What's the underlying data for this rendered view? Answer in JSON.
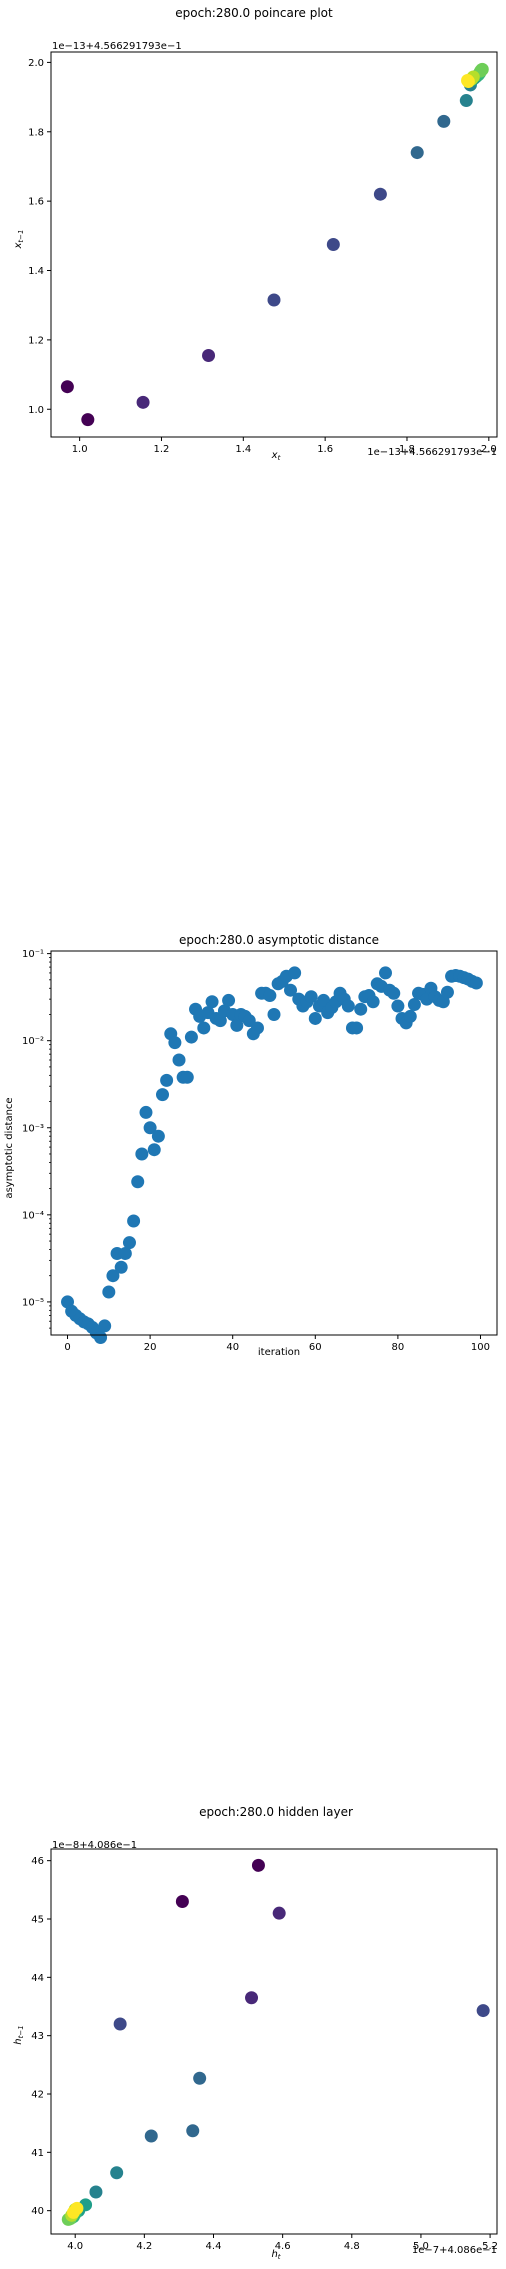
{
  "chart_data": [
    {
      "type": "scatter",
      "title": "epoch:280.0 poincare plot",
      "xlabel": "x_t",
      "ylabel": "x_{t-1}",
      "x_offset_label": "1e−13+4.566291793e−1",
      "y_offset_label": "1e−13+4.566291793e−1",
      "xlim": [
        0.93,
        2.02
      ],
      "ylim": [
        0.92,
        2.03
      ],
      "xticks": [
        1.0,
        1.2,
        1.4,
        1.6,
        1.8,
        2.0
      ],
      "xtick_labels": [
        "1.0",
        "1.2",
        "1.4",
        "1.6",
        "1.8",
        "2.0"
      ],
      "yticks": [
        1.0,
        1.2,
        1.4,
        1.6,
        1.8,
        2.0
      ],
      "ytick_labels": [
        "1.0",
        "1.2",
        "1.4",
        "1.6",
        "1.8",
        "2.0"
      ],
      "grid": false,
      "colormap": [
        "#440154",
        "#482878",
        "#3e4989",
        "#31688e",
        "#26828e",
        "#1f9e89",
        "#35b779",
        "#6ece58",
        "#b5de2b",
        "#fde725"
      ],
      "points": [
        {
          "x": 0.97,
          "y": 1.065
        },
        {
          "x": 1.02,
          "y": 0.97
        },
        {
          "x": 1.155,
          "y": 1.02
        },
        {
          "x": 1.315,
          "y": 1.155
        },
        {
          "x": 1.475,
          "y": 1.315
        },
        {
          "x": 1.62,
          "y": 1.475
        },
        {
          "x": 1.735,
          "y": 1.62
        },
        {
          "x": 1.825,
          "y": 1.74
        },
        {
          "x": 1.89,
          "y": 1.83
        },
        {
          "x": 1.945,
          "y": 1.89
        },
        {
          "x": 1.955,
          "y": 1.935
        },
        {
          "x": 1.96,
          "y": 1.95
        },
        {
          "x": 1.965,
          "y": 1.955
        },
        {
          "x": 1.97,
          "y": 1.96
        },
        {
          "x": 1.975,
          "y": 1.965
        },
        {
          "x": 1.978,
          "y": 1.97
        },
        {
          "x": 1.98,
          "y": 1.975
        },
        {
          "x": 1.982,
          "y": 1.978
        },
        {
          "x": 1.984,
          "y": 1.98
        },
        {
          "x": 1.962,
          "y": 1.958
        },
        {
          "x": 1.958,
          "y": 1.952
        },
        {
          "x": 1.95,
          "y": 1.945
        },
        {
          "x": 1.948,
          "y": 1.948
        }
      ]
    },
    {
      "type": "scatter",
      "title": "epoch:280.0 asymptotic distance",
      "xlabel": "iteration",
      "ylabel": "asymptotic distance",
      "yscale": "log",
      "xlim": [
        -4,
        104
      ],
      "ylim_log10": [
        -5.38,
        -0.97
      ],
      "xticks": [
        0,
        20,
        40,
        60,
        80,
        100
      ],
      "xtick_labels": [
        "0",
        "20",
        "40",
        "60",
        "80",
        "100"
      ],
      "ytick_exponents": [
        -5,
        -4,
        -3,
        -2,
        -1
      ],
      "ytick_labels": [
        "10⁻⁵",
        "10⁻⁴",
        "10⁻³",
        "10⁻²",
        "10⁻¹"
      ],
      "grid": false,
      "color": "#1f77b4",
      "x": [
        0,
        1,
        2,
        3,
        4,
        5,
        6,
        7,
        8,
        9,
        10,
        11,
        12,
        13,
        14,
        15,
        16,
        17,
        18,
        19,
        20,
        21,
        22,
        23,
        24,
        25,
        26,
        27,
        28,
        29,
        30,
        31,
        32,
        33,
        34,
        35,
        36,
        37,
        38,
        39,
        40,
        41,
        42,
        43,
        44,
        45,
        46,
        47,
        48,
        49,
        50,
        51,
        52,
        53,
        54,
        55,
        56,
        57,
        58,
        59,
        60,
        61,
        62,
        63,
        64,
        65,
        66,
        67,
        68,
        69,
        70,
        71,
        72,
        73,
        74,
        75,
        76,
        77,
        78,
        79,
        80,
        81,
        82,
        83,
        84,
        85,
        86,
        87,
        88,
        89,
        90,
        91,
        92,
        93,
        94,
        95,
        96,
        97,
        98,
        99
      ],
      "y": [
        1e-05,
        7.8e-06,
        7e-06,
        6.4e-06,
        5.9e-06,
        5.6e-06,
        5.1e-06,
        4.4e-06,
        3.9e-06,
        5.3e-06,
        1.3e-05,
        2e-05,
        3.6e-05,
        2.5e-05,
        3.6e-05,
        4.8e-05,
        8.5e-05,
        0.00024,
        0.0005,
        0.0015,
        0.001,
        0.00056,
        0.0008,
        0.0024,
        0.0035,
        0.012,
        0.0095,
        0.006,
        0.0038,
        0.0038,
        0.011,
        0.023,
        0.019,
        0.014,
        0.021,
        0.028,
        0.018,
        0.017,
        0.022,
        0.029,
        0.02,
        0.015,
        0.02,
        0.019,
        0.017,
        0.012,
        0.014,
        0.035,
        0.035,
        0.033,
        0.02,
        0.045,
        0.048,
        0.055,
        0.038,
        0.06,
        0.03,
        0.025,
        0.028,
        0.032,
        0.018,
        0.025,
        0.029,
        0.021,
        0.024,
        0.028,
        0.035,
        0.03,
        0.025,
        0.014,
        0.014,
        0.023,
        0.032,
        0.033,
        0.028,
        0.045,
        0.042,
        0.06,
        0.038,
        0.035,
        0.025,
        0.018,
        0.016,
        0.019,
        0.026,
        0.035,
        0.034,
        0.03,
        0.04,
        0.032,
        0.029,
        0.028,
        0.036,
        0.055,
        0.056,
        0.055,
        0.053,
        0.051,
        0.048,
        0.046
      ]
    },
    {
      "type": "scatter",
      "title": "epoch:280.0 hidden layer",
      "xlabel": "h_t",
      "ylabel": "h_{t-1}",
      "x_offset_label": "1e−7+4.086e−1",
      "y_offset_label": "1e−8+4.086e−1",
      "xlim": [
        3.93,
        5.22
      ],
      "ylim": [
        39.6,
        46.2
      ],
      "xticks": [
        4.0,
        4.2,
        4.4,
        4.6,
        4.8,
        5.0,
        5.2
      ],
      "xtick_labels": [
        "4.0",
        "4.2",
        "4.4",
        "4.6",
        "4.8",
        "5.0",
        "5.2"
      ],
      "yticks": [
        40,
        41,
        42,
        43,
        44,
        45,
        46
      ],
      "ytick_labels": [
        "40",
        "41",
        "42",
        "43",
        "44",
        "45",
        "46"
      ],
      "grid": false,
      "colormap": [
        "#440154",
        "#482878",
        "#3e4989",
        "#31688e",
        "#26828e",
        "#1f9e89",
        "#35b779",
        "#6ece58",
        "#b5de2b",
        "#fde725"
      ],
      "points": [
        {
          "x": 4.53,
          "y": 45.92
        },
        {
          "x": 4.31,
          "y": 45.3
        },
        {
          "x": 4.59,
          "y": 45.1
        },
        {
          "x": 4.51,
          "y": 43.65
        },
        {
          "x": 5.18,
          "y": 43.43
        },
        {
          "x": 4.13,
          "y": 43.2
        },
        {
          "x": 4.36,
          "y": 42.27
        },
        {
          "x": 4.22,
          "y": 41.28
        },
        {
          "x": 4.34,
          "y": 41.37
        },
        {
          "x": 4.12,
          "y": 40.65
        },
        {
          "x": 4.06,
          "y": 40.32
        },
        {
          "x": 4.03,
          "y": 40.1
        },
        {
          "x": 4.01,
          "y": 40.0
        },
        {
          "x": 4.0,
          "y": 39.95
        },
        {
          "x": 3.995,
          "y": 39.9
        },
        {
          "x": 3.99,
          "y": 39.88
        },
        {
          "x": 3.985,
          "y": 39.86
        },
        {
          "x": 3.98,
          "y": 39.85
        },
        {
          "x": 3.99,
          "y": 39.92
        },
        {
          "x": 4.0,
          "y": 40.02
        },
        {
          "x": 3.995,
          "y": 39.97
        },
        {
          "x": 4.005,
          "y": 40.04
        }
      ]
    }
  ]
}
